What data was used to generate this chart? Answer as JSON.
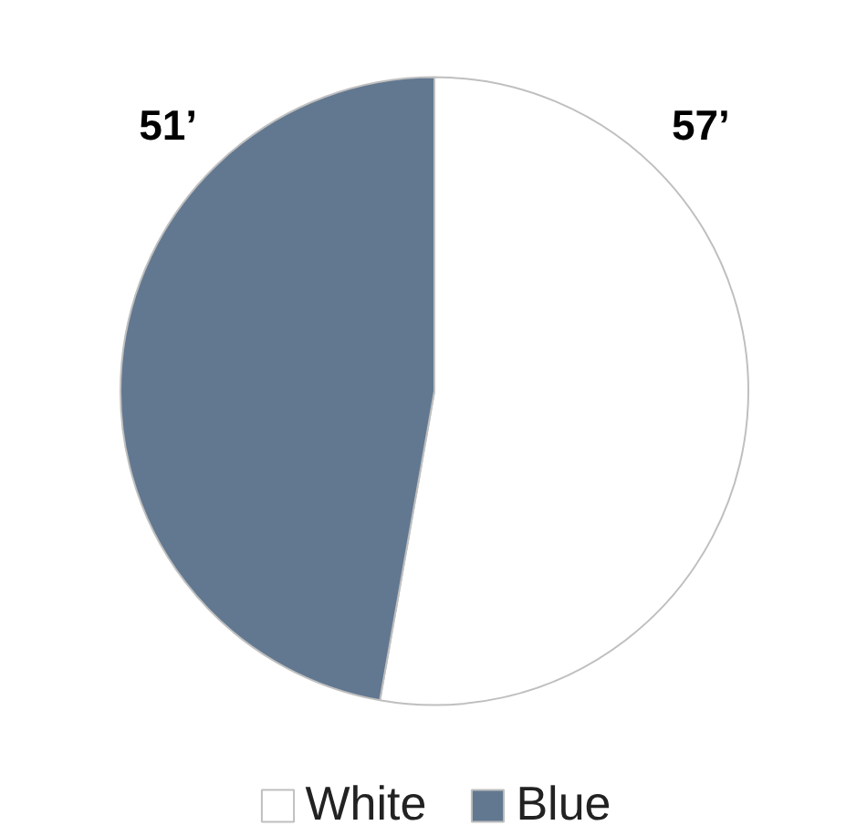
{
  "chart_data": {
    "type": "pie",
    "categories": [
      "White",
      "Blue"
    ],
    "values": [
      57,
      51
    ],
    "colors": [
      "#ffffff",
      "#627890"
    ],
    "value_labels": [
      "57’",
      "51’"
    ],
    "legend": "bottom"
  }
}
